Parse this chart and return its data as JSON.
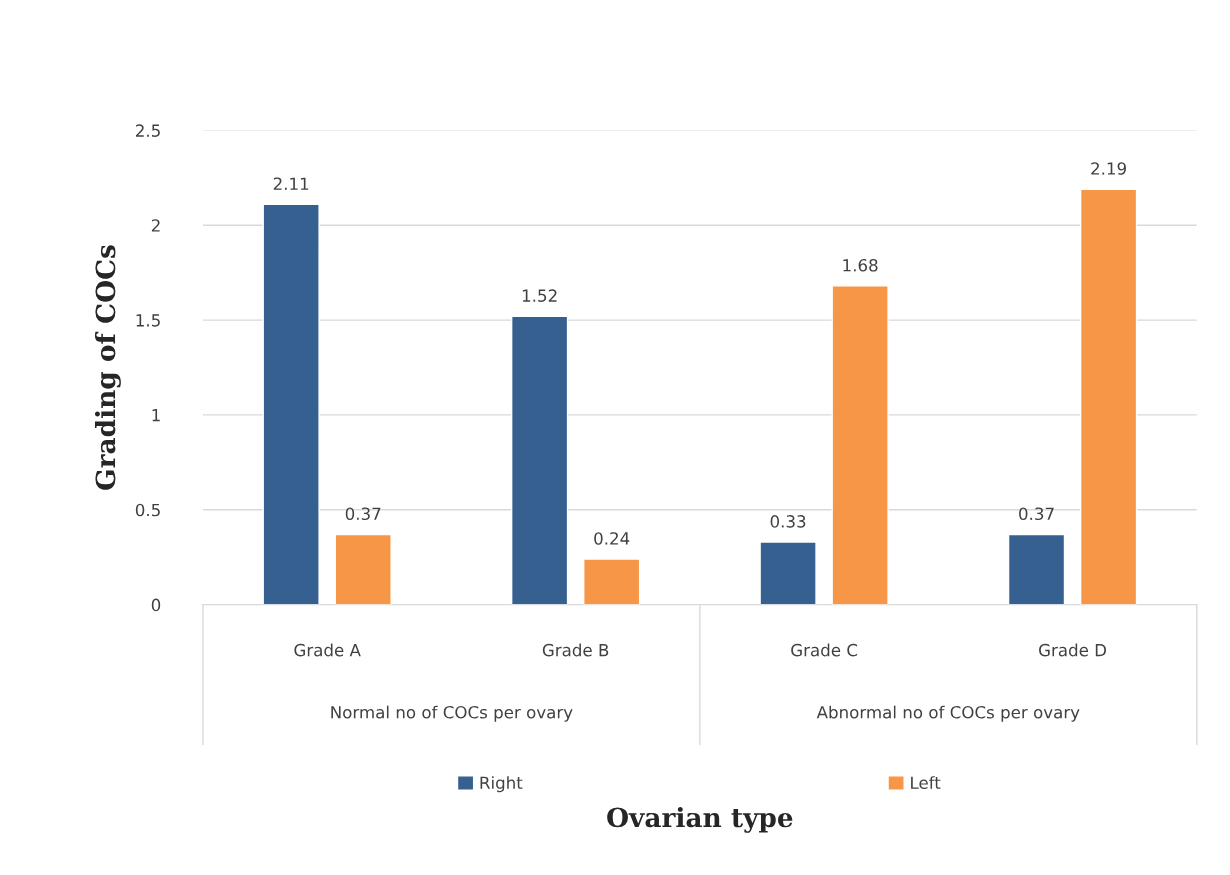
{
  "chart_data": {
    "type": "bar",
    "ylabel": "Grading of COCs",
    "categories": [
      "Grade A",
      "Grade B",
      "Grade C",
      "Grade D"
    ],
    "series": [
      {
        "name": "Right",
        "color": "#35608f",
        "values": [
          2.11,
          1.52,
          0.33,
          0.37
        ]
      },
      {
        "name": "Left",
        "color": "#f79646",
        "values": [
          0.37,
          0.24,
          1.68,
          2.19
        ]
      }
    ],
    "annotations": [
      "Normal no of COCs per ovary",
      "Abnormal no of COCs per ovary",
      "Ovarian type"
    ],
    "ylim": [
      0,
      2.5
    ],
    "yticks": [
      0,
      0.5,
      1,
      1.5,
      2,
      2.5
    ],
    "grid": "y",
    "legend": "bottom",
    "data_labels": true
  }
}
